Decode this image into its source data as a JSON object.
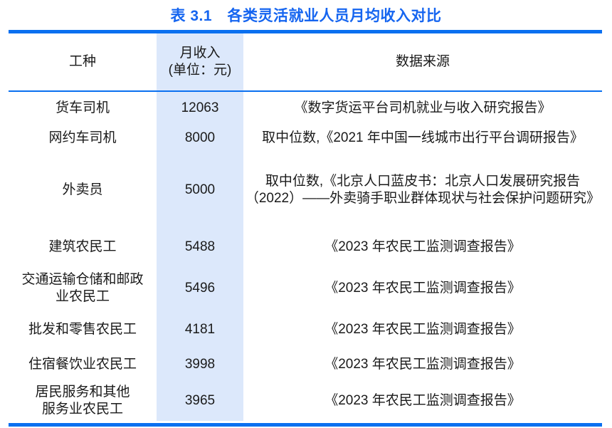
{
  "title": "表 3.1　各类灵活就业人员月均收入对比",
  "colors": {
    "accent_blue": "#0a70f0",
    "title_blue": "#1565f0",
    "band_blue": "#dce8fb",
    "text": "#1a1a1a"
  },
  "table": {
    "columns": {
      "job": "工种",
      "income": "月收入\n(单位：元)",
      "source": "数据来源"
    },
    "rows": [
      {
        "job": "货车司机",
        "income": "12063",
        "source": "《数字货运平台司机就业与收入研究报告》"
      },
      {
        "job": "网约车司机",
        "income": "8000",
        "source": "取中位数,《2021 年中国一线城市出行平台调研报告》"
      },
      {
        "job": "外卖员",
        "income": "5000",
        "source": "取中位数,《北京人口蓝皮书：北京人口发展研究报告\n（2022）——外卖骑手职业群体现状与社会保护问题研究》"
      },
      {
        "job": "建筑农民工",
        "income": "5488",
        "source": "《2023 年农民工监测调查报告》"
      },
      {
        "job": "交通运输仓储和邮政\n业农民工",
        "income": "5496",
        "source": "《2023 年农民工监测调查报告》"
      },
      {
        "job": "批发和零售农民工",
        "income": "4181",
        "source": "《2023 年农民工监测调查报告》"
      },
      {
        "job": "住宿餐饮业农民工",
        "income": "3998",
        "source": "《2023 年农民工监测调查报告》"
      },
      {
        "job": "居民服务和其他\n服务业农民工",
        "income": "3965",
        "source": "《2023 年农民工监测调查报告》"
      }
    ]
  }
}
